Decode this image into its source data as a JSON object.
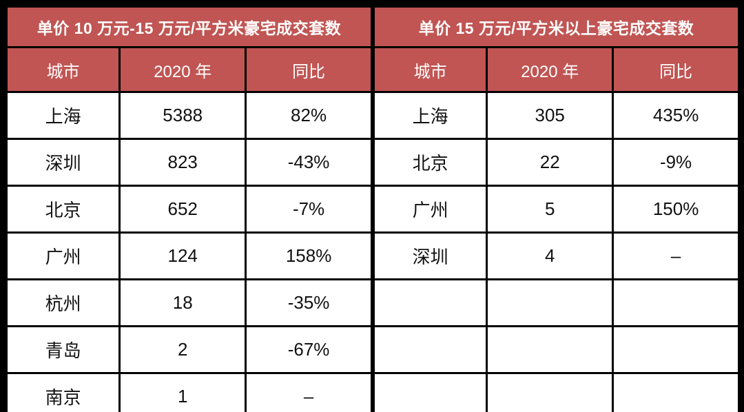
{
  "colors": {
    "header_bg": "#C05553",
    "header_text": "#FFFFFF",
    "body_text": "#111111",
    "grid_border": "#000000",
    "frame_bg": "#000000",
    "cell_bg": "#FFFFFF"
  },
  "chart_data": [
    {
      "type": "table",
      "title": "单价 10 万元-15 万元/平方米豪宅成交套数",
      "columns": [
        "城市",
        "2020 年",
        "同比"
      ],
      "rows": [
        [
          "上海",
          "5388",
          "82%"
        ],
        [
          "深圳",
          "823",
          "-43%"
        ],
        [
          "北京",
          "652",
          "-7%"
        ],
        [
          "广州",
          "124",
          "158%"
        ],
        [
          "杭州",
          "18",
          "-35%"
        ],
        [
          "青岛",
          "2",
          "-67%"
        ],
        [
          "南京",
          "1",
          "–"
        ]
      ]
    },
    {
      "type": "table",
      "title": "单价 15 万元/平方米以上豪宅成交套数",
      "columns": [
        "城市",
        "2020 年",
        "同比"
      ],
      "rows": [
        [
          "上海",
          "305",
          "435%"
        ],
        [
          "北京",
          "22",
          "-9%"
        ],
        [
          "广州",
          "5",
          "150%"
        ],
        [
          "深圳",
          "4",
          "–"
        ],
        [
          "",
          "",
          ""
        ],
        [
          "",
          "",
          ""
        ],
        [
          "",
          "",
          ""
        ]
      ]
    }
  ]
}
